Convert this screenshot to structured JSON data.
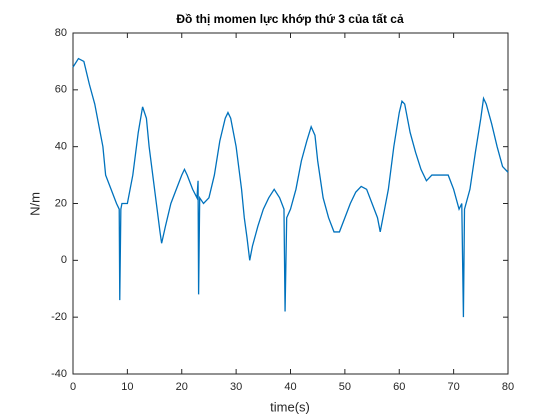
{
  "chart_data": {
    "type": "line",
    "title": "Đồ thị momen lực khớp thứ 3 của tất cả",
    "xlabel": "time(s)",
    "ylabel": "N/m",
    "x": [
      0,
      1,
      2,
      3,
      4,
      5,
      5.5,
      6,
      7,
      8,
      8.5,
      8.6,
      8.8,
      9,
      10,
      11,
      12,
      12.8,
      13.5,
      14,
      15,
      16,
      16.3,
      17,
      18,
      19,
      20,
      20.5,
      21,
      22,
      22.8,
      23,
      23.1,
      23.3,
      24,
      25,
      26,
      27,
      28,
      28.5,
      29,
      30,
      31,
      31.5,
      32,
      32.5,
      33,
      34,
      35,
      36,
      37,
      38,
      38.8,
      39,
      39.3,
      40,
      41,
      42,
      43,
      43.8,
      44.5,
      45,
      46,
      47,
      48,
      49,
      50,
      51,
      52,
      53,
      54,
      55,
      56,
      56.5,
      57,
      58,
      59,
      60,
      60.5,
      61,
      62,
      63,
      64,
      65,
      66,
      67,
      68,
      69,
      70,
      71,
      71.5,
      71.8,
      72,
      73,
      74,
      75,
      75.5,
      76,
      77,
      78,
      79,
      80
    ],
    "series": [
      {
        "name": null,
        "color": "#0072bd",
        "values": [
          68,
          71,
          70,
          62,
          55,
          45,
          40,
          30,
          25,
          20,
          18,
          -14,
          18,
          20,
          20,
          30,
          45,
          54,
          50,
          40,
          25,
          10,
          6,
          12,
          20,
          25,
          30,
          32,
          30,
          25,
          22,
          28,
          -12,
          22,
          20,
          22,
          30,
          42,
          50,
          52,
          50,
          40,
          25,
          15,
          8,
          0,
          5,
          12,
          18,
          22,
          25,
          22,
          18,
          -18,
          15,
          18,
          25,
          35,
          42,
          47,
          44,
          35,
          22,
          15,
          10,
          10,
          15,
          20,
          24,
          26,
          25,
          20,
          15,
          10,
          15,
          25,
          40,
          52,
          56,
          55,
          45,
          38,
          32,
          28,
          30,
          30,
          30,
          30,
          25,
          18,
          20,
          -20,
          18,
          25,
          38,
          50,
          57,
          55,
          48,
          40,
          33,
          31
        ]
      }
    ],
    "xlim": [
      0,
      80
    ],
    "ylim": [
      -40,
      80
    ],
    "xticks": [
      0,
      10,
      20,
      30,
      40,
      50,
      60,
      70,
      80
    ],
    "yticks": [
      -40,
      -20,
      0,
      20,
      40,
      60,
      80
    ]
  }
}
